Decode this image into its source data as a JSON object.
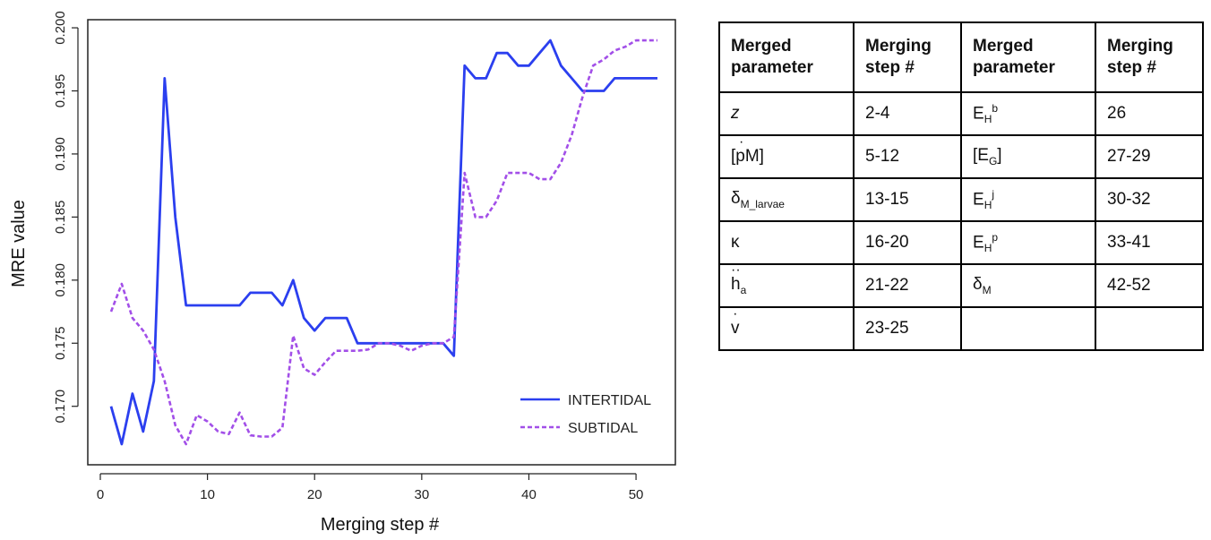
{
  "chart_data": {
    "type": "line",
    "xlabel": "Merging step #",
    "ylabel": "MRE value",
    "xlim": [
      0,
      54
    ],
    "ylim": [
      0.1665,
      0.2005
    ],
    "xticks": [
      0,
      10,
      20,
      30,
      40,
      50
    ],
    "yticks": [
      0.17,
      0.175,
      0.18,
      0.185,
      0.19,
      0.195,
      0.2
    ],
    "ytick_labels": [
      "0.170",
      "0.175",
      "0.180",
      "0.185",
      "0.190",
      "0.195",
      "0.200"
    ],
    "legend_position": "bottom-right",
    "series": [
      {
        "name": "INTERTIDAL",
        "color": "#2b3fef",
        "style": "solid",
        "x": [
          1,
          2,
          3,
          4,
          5,
          6,
          7,
          8,
          9,
          10,
          11,
          12,
          13,
          14,
          15,
          16,
          17,
          18,
          19,
          20,
          21,
          22,
          23,
          24,
          25,
          26,
          27,
          28,
          29,
          30,
          31,
          32,
          33,
          34,
          35,
          36,
          37,
          38,
          39,
          40,
          41,
          42,
          43,
          44,
          45,
          46,
          47,
          48,
          49,
          50,
          51,
          52
        ],
        "y": [
          0.17,
          0.167,
          0.171,
          0.168,
          0.172,
          0.196,
          0.185,
          0.178,
          0.178,
          0.178,
          0.178,
          0.178,
          0.178,
          0.179,
          0.179,
          0.179,
          0.178,
          0.18,
          0.177,
          0.176,
          0.177,
          0.177,
          0.177,
          0.175,
          0.175,
          0.175,
          0.175,
          0.175,
          0.175,
          0.175,
          0.175,
          0.175,
          0.174,
          0.197,
          0.196,
          0.196,
          0.198,
          0.198,
          0.197,
          0.197,
          0.198,
          0.199,
          0.197,
          0.196,
          0.195,
          0.195,
          0.195,
          0.196,
          0.196,
          0.196,
          0.196,
          0.196
        ]
      },
      {
        "name": "SUBTIDAL",
        "color": "#a24fe8",
        "style": "dashed",
        "x": [
          1,
          2,
          3,
          4,
          5,
          6,
          7,
          8,
          9,
          10,
          11,
          12,
          13,
          14,
          15,
          16,
          17,
          18,
          19,
          20,
          21,
          22,
          23,
          24,
          25,
          26,
          27,
          28,
          29,
          30,
          31,
          32,
          33,
          34,
          35,
          36,
          37,
          38,
          39,
          40,
          41,
          42,
          43,
          44,
          45,
          46,
          47,
          48,
          49,
          50,
          51,
          52
        ],
        "y": [
          0.1775,
          0.1797,
          0.177,
          0.176,
          0.1745,
          0.172,
          0.1685,
          0.167,
          0.1693,
          0.1688,
          0.168,
          0.1678,
          0.1695,
          0.1677,
          0.1676,
          0.1676,
          0.1683,
          0.1756,
          0.173,
          0.1725,
          0.1735,
          0.1744,
          0.1744,
          0.1744,
          0.1745,
          0.175,
          0.175,
          0.1748,
          0.1744,
          0.1748,
          0.175,
          0.175,
          0.1755,
          0.1885,
          0.185,
          0.185,
          0.1863,
          0.1885,
          0.1885,
          0.1885,
          0.188,
          0.188,
          0.1893,
          0.1915,
          0.1945,
          0.197,
          0.1975,
          0.1982,
          0.1985,
          0.199,
          0.199,
          0.199
        ]
      }
    ]
  },
  "table": {
    "headers": [
      [
        "Merged",
        "parameter"
      ],
      [
        "Merging",
        "step #"
      ],
      [
        "Merged",
        "parameter"
      ],
      [
        "Merging",
        "step #"
      ]
    ],
    "rows": [
      {
        "p1_base": "z",
        "p1_sub": "",
        "p1_sup": "",
        "s1": "2-4",
        "p2_base": "E",
        "p2_sub": "H",
        "p2_sup": "b",
        "s2": "26"
      },
      {
        "p1_base": "[pM]",
        "p1_sub": "",
        "p1_sup": "",
        "s1": "5-12",
        "p2_base": "[E",
        "p2_sub": "G",
        "p2_sup": "]",
        "s2": "27-29"
      },
      {
        "p1_base": "δ",
        "p1_sub": "M_larvae",
        "p1_sup": "",
        "s1": "13-15",
        "p2_base": "E",
        "p2_sub": "H",
        "p2_sup": "j",
        "s2": "30-32"
      },
      {
        "p1_base": "κ",
        "p1_sub": "",
        "p1_sup": "",
        "s1": "16-20",
        "p2_base": "E",
        "p2_sub": "H",
        "p2_sup": "p",
        "s2": "33-41"
      },
      {
        "p1_base": "h",
        "p1_sub": "a",
        "p1_sup": "",
        "s1": "21-22",
        "p2_base": "δ",
        "p2_sub": "M",
        "p2_sup": "",
        "s2": "42-52"
      },
      {
        "p1_base": "v",
        "p1_sub": "",
        "p1_sup": "",
        "s1": "23-25",
        "p2_base": "",
        "p2_sub": "",
        "p2_sup": "",
        "s2": ""
      }
    ]
  }
}
